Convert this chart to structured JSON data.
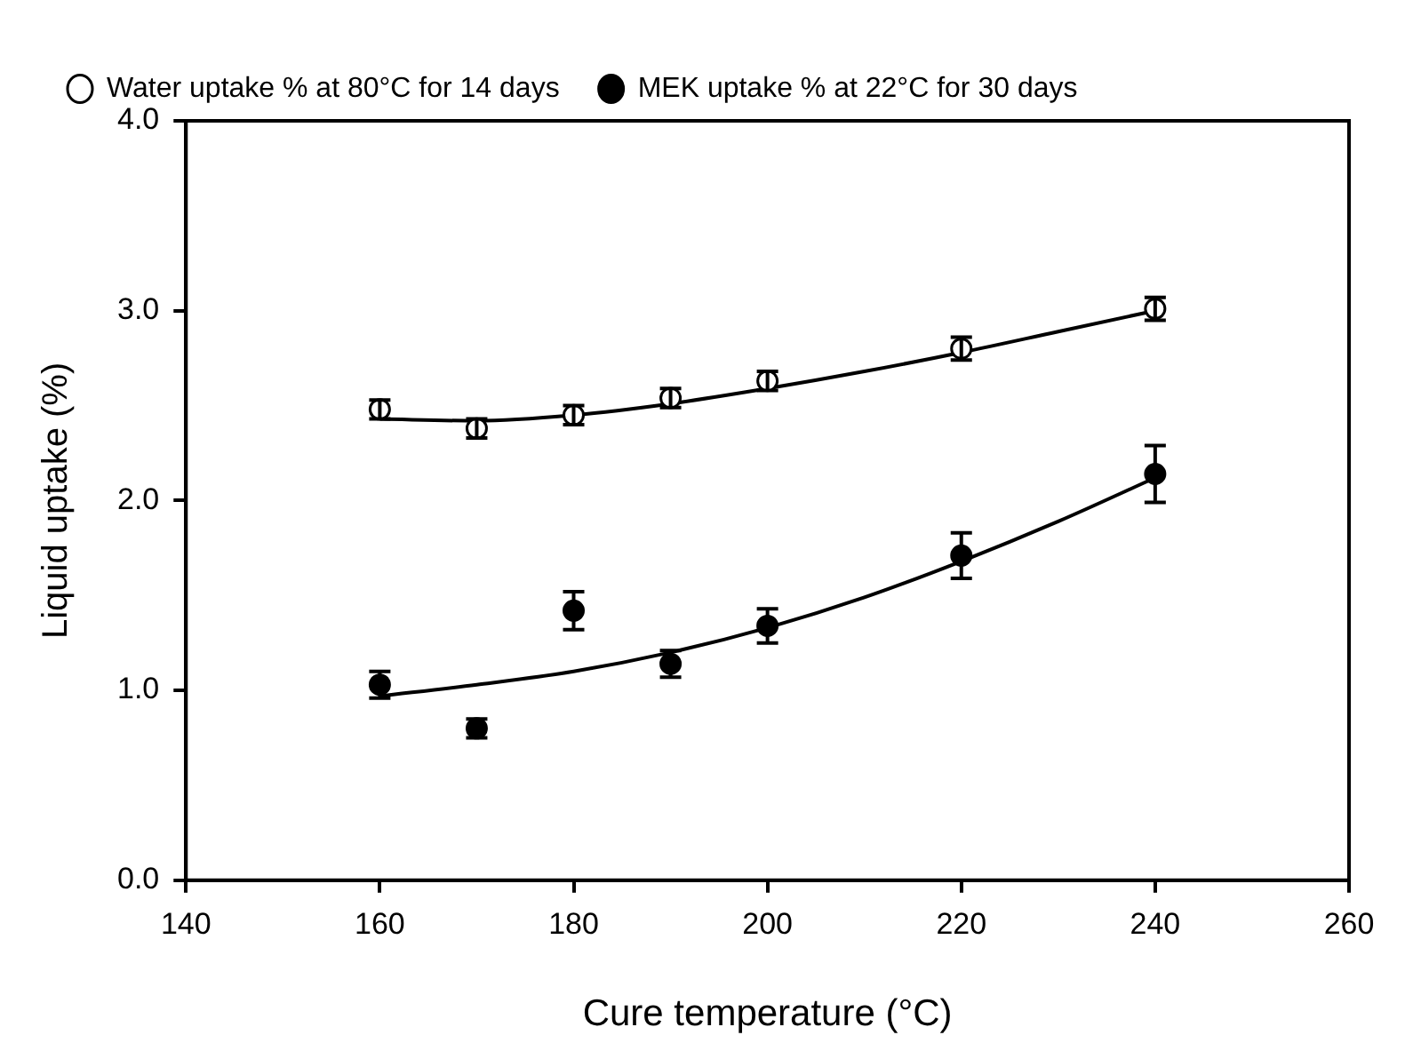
{
  "chart_data": {
    "type": "scatter",
    "xlabel": "Cure temperature (°C)",
    "ylabel": "Liquid uptake (%)",
    "xlim": [
      140,
      260
    ],
    "xticks": [
      140,
      160,
      180,
      200,
      220,
      240,
      260
    ],
    "ylim": [
      0,
      4
    ],
    "yticks": [
      {
        "value": 0,
        "label": "0.0"
      },
      {
        "value": 1,
        "label": "1.0"
      },
      {
        "value": 2,
        "label": "2.0"
      },
      {
        "value": 3,
        "label": "3.0"
      },
      {
        "value": 4,
        "label": "4.0"
      }
    ],
    "grid": false,
    "legend": "top left",
    "marker": "circle",
    "series": [
      {
        "name": "Water uptake % at 80°C for 14 days",
        "color": "#ffffff",
        "x": [
          160,
          170,
          180,
          190,
          200,
          220,
          240
        ],
        "values": [
          2.48,
          2.38,
          2.45,
          2.54,
          2.63,
          2.8,
          3.01
        ],
        "errors": [
          0.05,
          0.05,
          0.05,
          0.05,
          0.05,
          0.06,
          0.06
        ]
      },
      {
        "name": "MEK uptake % at 22°C for 30 days",
        "color": "#000000",
        "x": [
          160,
          170,
          180,
          190,
          200,
          220,
          240
        ],
        "values": [
          1.03,
          0.8,
          1.42,
          1.14,
          1.34,
          1.71,
          2.14
        ],
        "errors": [
          0.07,
          0.05,
          0.1,
          0.07,
          0.09,
          0.12,
          0.15
        ]
      },
      {
        "type": "line",
        "color": "#000000",
        "marker": "none",
        "x": [
          160,
          170,
          180,
          190,
          200,
          210,
          220,
          230,
          240
        ],
        "values": [
          2.43,
          2.42,
          2.45,
          2.51,
          2.59,
          2.68,
          2.78,
          2.89,
          3.0
        ]
      },
      {
        "type": "line",
        "color": "#000000",
        "marker": "none",
        "x": [
          160,
          170,
          180,
          190,
          200,
          210,
          220,
          230,
          240
        ],
        "values": [
          0.97,
          1.03,
          1.1,
          1.2,
          1.33,
          1.49,
          1.68,
          1.89,
          2.12
        ]
      }
    ]
  }
}
